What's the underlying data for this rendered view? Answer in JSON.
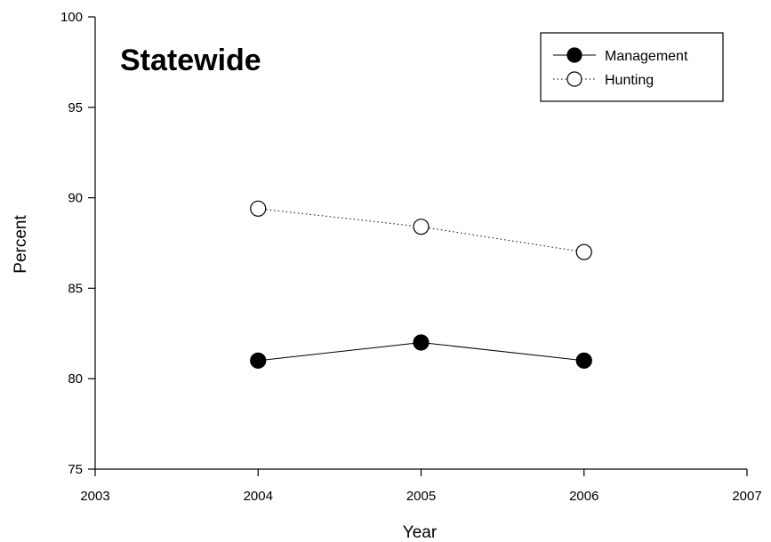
{
  "chart_data": {
    "type": "line",
    "title": "Statewide",
    "xlabel": "Year",
    "ylabel": "Percent",
    "xlim": [
      2003,
      2007
    ],
    "ylim": [
      75,
      100
    ],
    "x_ticks": [
      "2003",
      "2004",
      "2005",
      "2006",
      "2007"
    ],
    "y_ticks": [
      "75",
      "80",
      "85",
      "90",
      "95",
      "100"
    ],
    "x": [
      2004,
      2005,
      2006
    ],
    "series": [
      {
        "name": "Management",
        "values": [
          81.0,
          82.0,
          81.0
        ],
        "marker": "filled-circle",
        "line_style": "solid",
        "color": "#000000"
      },
      {
        "name": "Hunting",
        "values": [
          89.4,
          88.4,
          87.0
        ],
        "marker": "open-circle",
        "line_style": "dotted",
        "color": "#000000"
      }
    ],
    "grid": false,
    "legend_position": "top-right"
  }
}
